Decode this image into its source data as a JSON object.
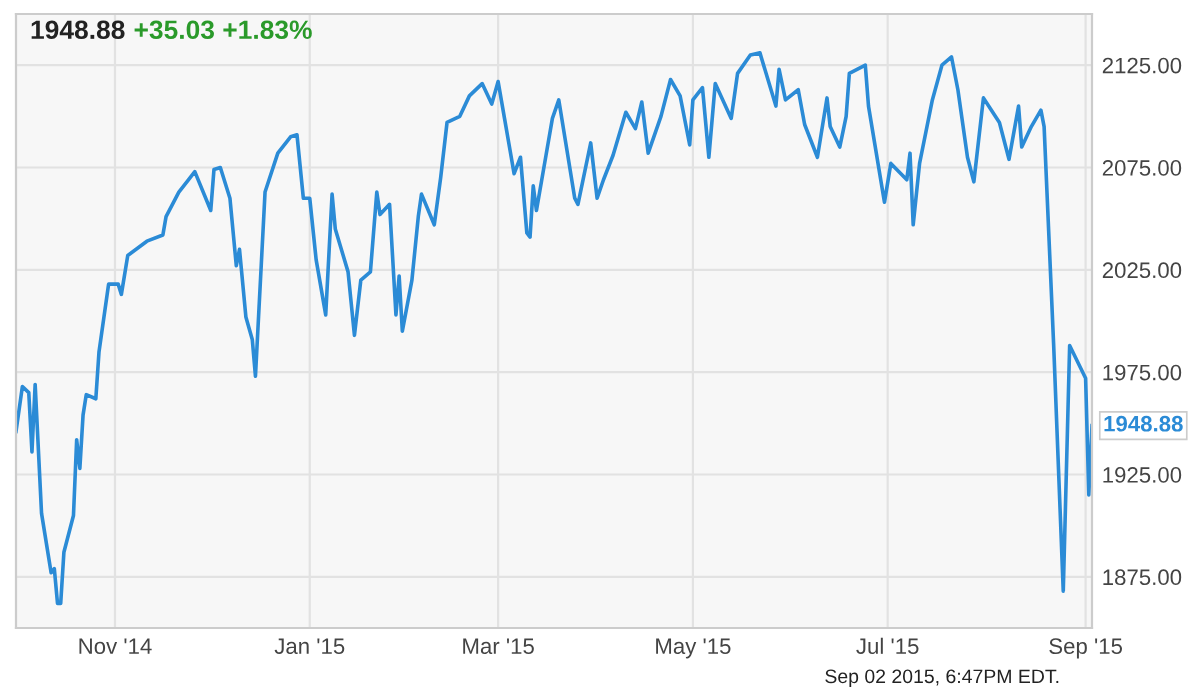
{
  "chart_data": {
    "type": "line",
    "title": "1948.88",
    "subtitle": "+35.03 +1.83%",
    "annotations": [
      {
        "text": "1948.88",
        "x": "2015-09-03",
        "y": 1948.88
      },
      "Sep 02 2015, 6:47PM EDT."
    ],
    "x": [
      "2014-10-01",
      "2014-10-03",
      "2014-10-05",
      "2014-10-06",
      "2014-10-07",
      "2014-10-09",
      "2014-10-12",
      "2014-10-13",
      "2014-10-14",
      "2014-10-15",
      "2014-10-16",
      "2014-10-19",
      "2014-10-20",
      "2014-10-21",
      "2014-10-22",
      "2014-10-23",
      "2014-10-26",
      "2014-10-27",
      "2014-10-30",
      "2014-11-02",
      "2014-11-03",
      "2014-11-05",
      "2014-11-11",
      "2014-11-16",
      "2014-11-17",
      "2014-11-21",
      "2014-11-24",
      "2014-11-26",
      "2014-12-01",
      "2014-12-02",
      "2014-12-04",
      "2014-12-07",
      "2014-12-09",
      "2014-12-10",
      "2014-12-12",
      "2014-12-14",
      "2014-12-15",
      "2014-12-18",
      "2014-12-22",
      "2014-12-26",
      "2014-12-28",
      "2014-12-30",
      "2015-01-01",
      "2015-01-03",
      "2015-01-06",
      "2015-01-08",
      "2015-01-09",
      "2015-01-13",
      "2015-01-15",
      "2015-01-17",
      "2015-01-20",
      "2015-01-22",
      "2015-01-23",
      "2015-01-26",
      "2015-01-28",
      "2015-01-29",
      "2015-01-30",
      "2015-02-02",
      "2015-02-04",
      "2015-02-05",
      "2015-02-09",
      "2015-02-11",
      "2015-02-13",
      "2015-02-17",
      "2015-02-20",
      "2015-02-24",
      "2015-02-27",
      "2015-03-01",
      "2015-03-03",
      "2015-03-06",
      "2015-03-08",
      "2015-03-10",
      "2015-03-11",
      "2015-03-12",
      "2015-03-13",
      "2015-03-16",
      "2015-03-18",
      "2015-03-20",
      "2015-03-25",
      "2015-03-26",
      "2015-03-30",
      "2015-04-01",
      "2015-04-03",
      "2015-04-06",
      "2015-04-10",
      "2015-04-13",
      "2015-04-15",
      "2015-04-17",
      "2015-04-21",
      "2015-04-24",
      "2015-04-27",
      "2015-04-30",
      "2015-05-01",
      "2015-05-04",
      "2015-05-06",
      "2015-05-08",
      "2015-05-13",
      "2015-05-15",
      "2015-05-19",
      "2015-05-22",
      "2015-05-27",
      "2015-05-28",
      "2015-05-30",
      "2015-06-03",
      "2015-06-05",
      "2015-06-09",
      "2015-06-12",
      "2015-06-13",
      "2015-06-16",
      "2015-06-18",
      "2015-06-19",
      "2015-06-24",
      "2015-06-25",
      "2015-06-30",
      "2015-07-02",
      "2015-07-07",
      "2015-07-08",
      "2015-07-09",
      "2015-07-11",
      "2015-07-15",
      "2015-07-18",
      "2015-07-21",
      "2015-07-23",
      "2015-07-26",
      "2015-07-28",
      "2015-07-31",
      "2015-08-05",
      "2015-08-08",
      "2015-08-11",
      "2015-08-12",
      "2015-08-15",
      "2015-08-18",
      "2015-08-19",
      "2015-08-22",
      "2015-08-25",
      "2015-08-27",
      "2015-09-01",
      "2015-09-02",
      "2015-09-03"
    ],
    "series": [
      {
        "color": "#2b8bd6",
        "values": [
          1946,
          1968,
          1965,
          1936,
          1969,
          1906,
          1877,
          1879,
          1862,
          1862,
          1887,
          1905,
          1942,
          1928,
          1954,
          1964,
          1962,
          1985,
          2018,
          2018,
          2013,
          2032,
          2039,
          2042,
          2051,
          2063,
          2069,
          2073,
          2054,
          2074,
          2075,
          2060,
          2027,
          2035,
          2002,
          1991,
          1973,
          2063,
          2082,
          2090,
          2091,
          2060,
          2060,
          2030,
          2003,
          2062,
          2045,
          2024,
          1993,
          2020,
          2024,
          2063,
          2052,
          2057,
          2003,
          2022,
          1995,
          2020,
          2051,
          2062,
          2047,
          2070,
          2097,
          2100,
          2110,
          2116,
          2106,
          2117,
          2099,
          2072,
          2080,
          2043,
          2041,
          2066,
          2054,
          2081,
          2099,
          2108,
          2060,
          2057,
          2087,
          2060,
          2069,
          2081,
          2102,
          2094,
          2107,
          2082,
          2100,
          2118,
          2110,
          2086,
          2108,
          2114,
          2080,
          2116,
          2099,
          2121,
          2130,
          2131,
          2105,
          2123,
          2108,
          2113,
          2096,
          2080,
          2109,
          2095,
          2085,
          2100,
          2121,
          2125,
          2105,
          2058,
          2077,
          2069,
          2082,
          2047,
          2077,
          2108,
          2125,
          2129,
          2113,
          2080,
          2068,
          2109,
          2097,
          2079,
          2105,
          2085,
          2095,
          2103,
          2095,
          1988,
          1868,
          1988,
          1972,
          1915,
          1948.88
        ]
      }
    ],
    "xlim": [
      "2014-10-01",
      "2015-09-03"
    ],
    "ylim": [
      1850,
      2150
    ],
    "xticks": [
      {
        "value": "2014-11-01",
        "label": "Nov '14"
      },
      {
        "value": "2015-01-01",
        "label": "Jan '15"
      },
      {
        "value": "2015-03-01",
        "label": "Mar '15"
      },
      {
        "value": "2015-05-01",
        "label": "May '15"
      },
      {
        "value": "2015-07-01",
        "label": "Jul '15"
      },
      {
        "value": "2015-09-01",
        "label": "Sep '15"
      }
    ],
    "yticks": [
      {
        "value": 1875,
        "label": "1875.00"
      },
      {
        "value": 1925,
        "label": "1925.00"
      },
      {
        "value": 1975,
        "label": "1975.00"
      },
      {
        "value": 2025,
        "label": "2025.00"
      },
      {
        "value": 2075,
        "label": "2075.00"
      },
      {
        "value": 2125,
        "label": "2125.00"
      }
    ],
    "grid": true,
    "marker": "none",
    "line_style": "solid"
  }
}
